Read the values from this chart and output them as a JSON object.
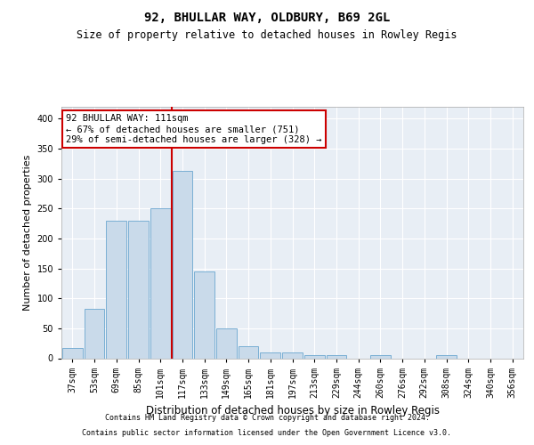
{
  "title1": "92, BHULLAR WAY, OLDBURY, B69 2GL",
  "title2": "Size of property relative to detached houses in Rowley Regis",
  "xlabel": "Distribution of detached houses by size in Rowley Regis",
  "ylabel": "Number of detached properties",
  "bin_labels": [
    "37sqm",
    "53sqm",
    "69sqm",
    "85sqm",
    "101sqm",
    "117sqm",
    "133sqm",
    "149sqm",
    "165sqm",
    "181sqm",
    "197sqm",
    "213sqm",
    "229sqm",
    "244sqm",
    "260sqm",
    "276sqm",
    "292sqm",
    "308sqm",
    "324sqm",
    "340sqm",
    "356sqm"
  ],
  "bar_values": [
    17,
    83,
    230,
    230,
    250,
    313,
    145,
    50,
    20,
    10,
    10,
    5,
    5,
    0,
    5,
    0,
    0,
    5,
    0,
    0,
    0
  ],
  "bar_color": "#c9daea",
  "bar_edgecolor": "#7aafd4",
  "vline_x": 4.5,
  "vline_color": "#cc0000",
  "annotation_text": "92 BHULLAR WAY: 111sqm\n← 67% of detached houses are smaller (751)\n29% of semi-detached houses are larger (328) →",
  "annotation_box_color": "white",
  "annotation_box_edgecolor": "#cc0000",
  "ylim": [
    0,
    420
  ],
  "yticks": [
    0,
    50,
    100,
    150,
    200,
    250,
    300,
    350,
    400
  ],
  "footer1": "Contains HM Land Registry data © Crown copyright and database right 2024.",
  "footer2": "Contains public sector information licensed under the Open Government Licence v3.0.",
  "background_color": "#ffffff",
  "plot_background_color": "#e8eef5",
  "grid_color": "#ffffff",
  "title1_fontsize": 10,
  "title2_fontsize": 8.5,
  "ylabel_fontsize": 8,
  "xlabel_fontsize": 8.5,
  "tick_fontsize": 7,
  "annot_fontsize": 7.5,
  "footer_fontsize": 6
}
